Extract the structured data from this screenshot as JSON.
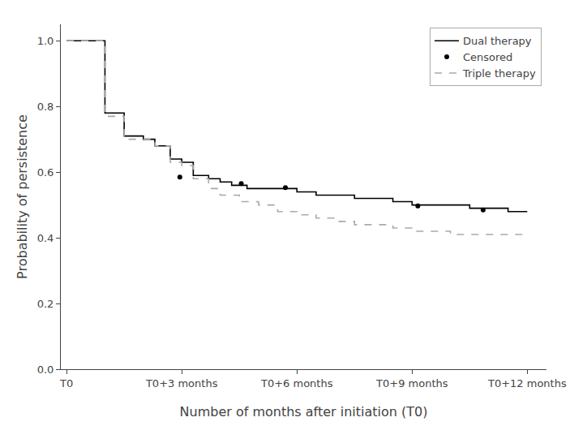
{
  "chart_data": {
    "type": "step",
    "xlabel": "Number of months after initiation (T0)",
    "ylabel": "Probability of persistence",
    "xlim": [
      -0.15,
      12.5
    ],
    "xticks": [
      {
        "value": 0,
        "label": "T0"
      },
      {
        "value": 3,
        "label": "T0+3 months"
      },
      {
        "value": 6,
        "label": "T0+6 months"
      },
      {
        "value": 9,
        "label": "T0+9 months"
      },
      {
        "value": 12,
        "label": "T0+12 months"
      }
    ],
    "ylim": [
      0.0,
      1.05
    ],
    "yticks": [
      {
        "value": 0.0,
        "label": "0.0"
      },
      0.2,
      0.4,
      0.6,
      0.8,
      {
        "value": 1.0,
        "label": "1.0"
      }
    ],
    "grid": false,
    "legend": "upper right",
    "series": [
      {
        "name": "Dual therapy",
        "type": "step",
        "color": "#000000",
        "line_style": "solid",
        "x": [
          0,
          1.0,
          1.5,
          2.0,
          2.3,
          2.7,
          3.0,
          3.3,
          3.7,
          4.0,
          4.3,
          4.7,
          5.0,
          5.3,
          5.7,
          6.0,
          6.5,
          7.0,
          7.5,
          8.0,
          8.5,
          9.0,
          9.5,
          10.0,
          10.5,
          11.0,
          11.5,
          12.0
        ],
        "values": [
          1.0,
          0.78,
          0.71,
          0.7,
          0.68,
          0.64,
          0.63,
          0.59,
          0.58,
          0.57,
          0.56,
          0.55,
          0.55,
          0.55,
          0.55,
          0.54,
          0.53,
          0.53,
          0.52,
          0.52,
          0.51,
          0.5,
          0.5,
          0.5,
          0.49,
          0.49,
          0.48,
          0.48
        ]
      },
      {
        "name": "Censored",
        "type": "scatter",
        "color": "#000000",
        "marker": "circle",
        "x": [
          2.95,
          4.55,
          5.7,
          9.15,
          10.85
        ],
        "values": [
          0.585,
          0.565,
          0.553,
          0.497,
          0.485
        ]
      },
      {
        "name": "Triple therapy",
        "type": "step",
        "color": "#aaaaaa",
        "line_style": "dashed",
        "x": [
          0,
          1.0,
          1.5,
          2.0,
          2.3,
          2.7,
          3.0,
          3.3,
          3.7,
          4.0,
          4.5,
          5.0,
          5.5,
          6.0,
          6.5,
          7.0,
          7.5,
          8.0,
          8.5,
          9.0,
          9.5,
          10.0,
          10.5,
          11.0,
          11.5,
          12.0
        ],
        "values": [
          1.0,
          0.77,
          0.7,
          0.7,
          0.68,
          0.63,
          0.62,
          0.58,
          0.55,
          0.53,
          0.51,
          0.5,
          0.48,
          0.47,
          0.46,
          0.45,
          0.44,
          0.44,
          0.43,
          0.42,
          0.42,
          0.41,
          0.41,
          0.41,
          0.41,
          0.41
        ]
      }
    ]
  }
}
